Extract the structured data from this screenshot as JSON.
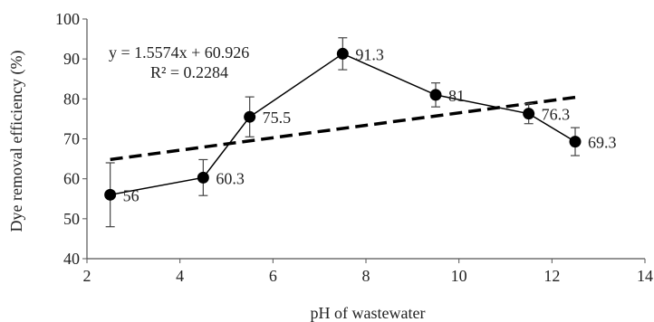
{
  "chart_data": {
    "type": "scatter",
    "xlabel": "pH of wastewater",
    "ylabel": "Dye removal efficiency   (%)",
    "xlim": [
      2,
      14
    ],
    "ylim": [
      40,
      100
    ],
    "xticks": [
      2,
      4,
      6,
      8,
      10,
      12,
      14
    ],
    "yticks": [
      40,
      50,
      60,
      70,
      80,
      90,
      100
    ],
    "grid": false,
    "series": [
      {
        "x": [
          2.5,
          4.5,
          5.5,
          7.5,
          9.5,
          11.5,
          12.5
        ],
        "y": [
          56,
          60.3,
          75.5,
          91.3,
          81,
          76.3,
          69.3
        ],
        "labels": [
          "56",
          "60.3",
          "75.5",
          "91.3",
          "81",
          "76.3",
          "69.3"
        ],
        "error": [
          8,
          4.5,
          5,
          4,
          3,
          2.5,
          3.5
        ],
        "color": "#000000",
        "line": "solid",
        "marker": "circle"
      }
    ],
    "trendline": {
      "type": "linear",
      "slope": 1.5574,
      "intercept": 60.926,
      "x_range": [
        2.5,
        12.5
      ],
      "style": "dashed",
      "color": "#000000",
      "equation": "y = 1.5574x + 60.926",
      "r_squared": "R² = 0.2284"
    }
  }
}
